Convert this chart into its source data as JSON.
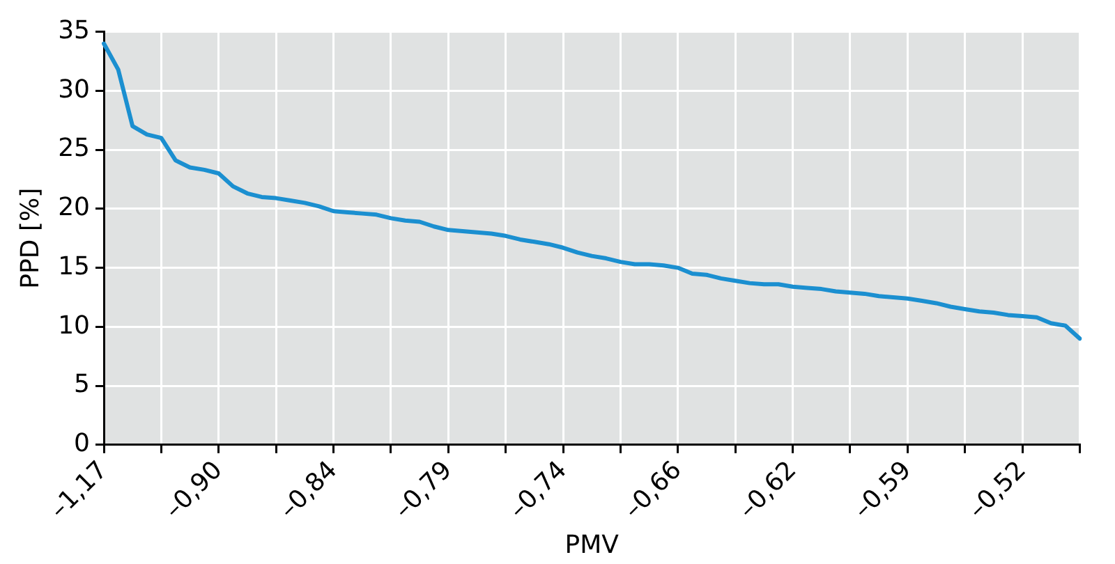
{
  "chart_data": {
    "type": "line",
    "xlabel": "PMV",
    "ylabel": "PPD [%]",
    "categories": [
      "–1,17",
      null,
      null,
      null,
      null,
      null,
      null,
      null,
      "–0,90",
      null,
      null,
      null,
      null,
      null,
      null,
      null,
      "–0,84",
      null,
      null,
      null,
      null,
      null,
      null,
      null,
      "–0,79",
      null,
      null,
      null,
      null,
      null,
      null,
      null,
      "–0,74",
      null,
      null,
      null,
      null,
      null,
      null,
      null,
      "–0,66",
      null,
      null,
      null,
      null,
      null,
      null,
      null,
      "–0,62",
      null,
      null,
      null,
      null,
      null,
      null,
      null,
      "–0,59",
      null,
      null,
      null,
      null,
      null,
      null,
      null,
      "–0,52",
      null,
      null,
      null,
      null
    ],
    "series": [
      {
        "color": "#1b8fd0",
        "values": [
          34,
          31.8,
          27.0,
          26.3,
          26.0,
          24.1,
          23.5,
          23.3,
          23.0,
          21.9,
          21.3,
          21.0,
          20.9,
          20.7,
          20.5,
          20.2,
          19.8,
          19.7,
          19.6,
          19.5,
          19.2,
          19.0,
          18.9,
          18.5,
          18.2,
          18.1,
          18.0,
          17.9,
          17.7,
          17.4,
          17.2,
          17.0,
          16.7,
          16.3,
          16.0,
          15.8,
          15.5,
          15.3,
          15.3,
          15.2,
          15.0,
          14.5,
          14.4,
          14.1,
          13.9,
          13.7,
          13.6,
          13.6,
          13.4,
          13.3,
          13.2,
          13.0,
          12.9,
          12.8,
          12.6,
          12.5,
          12.4,
          12.2,
          12.0,
          11.7,
          11.5,
          11.3,
          11.2,
          11.0,
          10.9,
          10.8,
          10.3,
          10.1,
          9.0
        ]
      }
    ],
    "ylim": [
      0,
      35
    ],
    "yticks": [
      0,
      5,
      10,
      15,
      20,
      25,
      30,
      35
    ],
    "grid": true,
    "legend": false,
    "marker": "none",
    "line_style": "solid"
  }
}
